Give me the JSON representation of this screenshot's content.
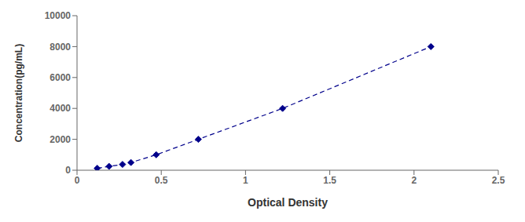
{
  "chart_data": {
    "type": "line",
    "x": [
      0.12,
      0.19,
      0.27,
      0.32,
      0.47,
      0.72,
      1.22,
      2.1
    ],
    "values": [
      125,
      250,
      375,
      500,
      1000,
      2000,
      4000,
      8000
    ],
    "color": "#00008B",
    "marker": "diamond",
    "line_style": "dashed",
    "xlabel": "Optical Density",
    "ylabel": "Concentration(pg/mL)",
    "xlim": [
      0,
      2.5
    ],
    "ylim": [
      0,
      10000
    ],
    "xticks": [
      0,
      0.5,
      1,
      1.5,
      2,
      2.5
    ],
    "yticks": [
      0,
      2000,
      4000,
      6000,
      8000,
      10000
    ],
    "grid": false
  }
}
